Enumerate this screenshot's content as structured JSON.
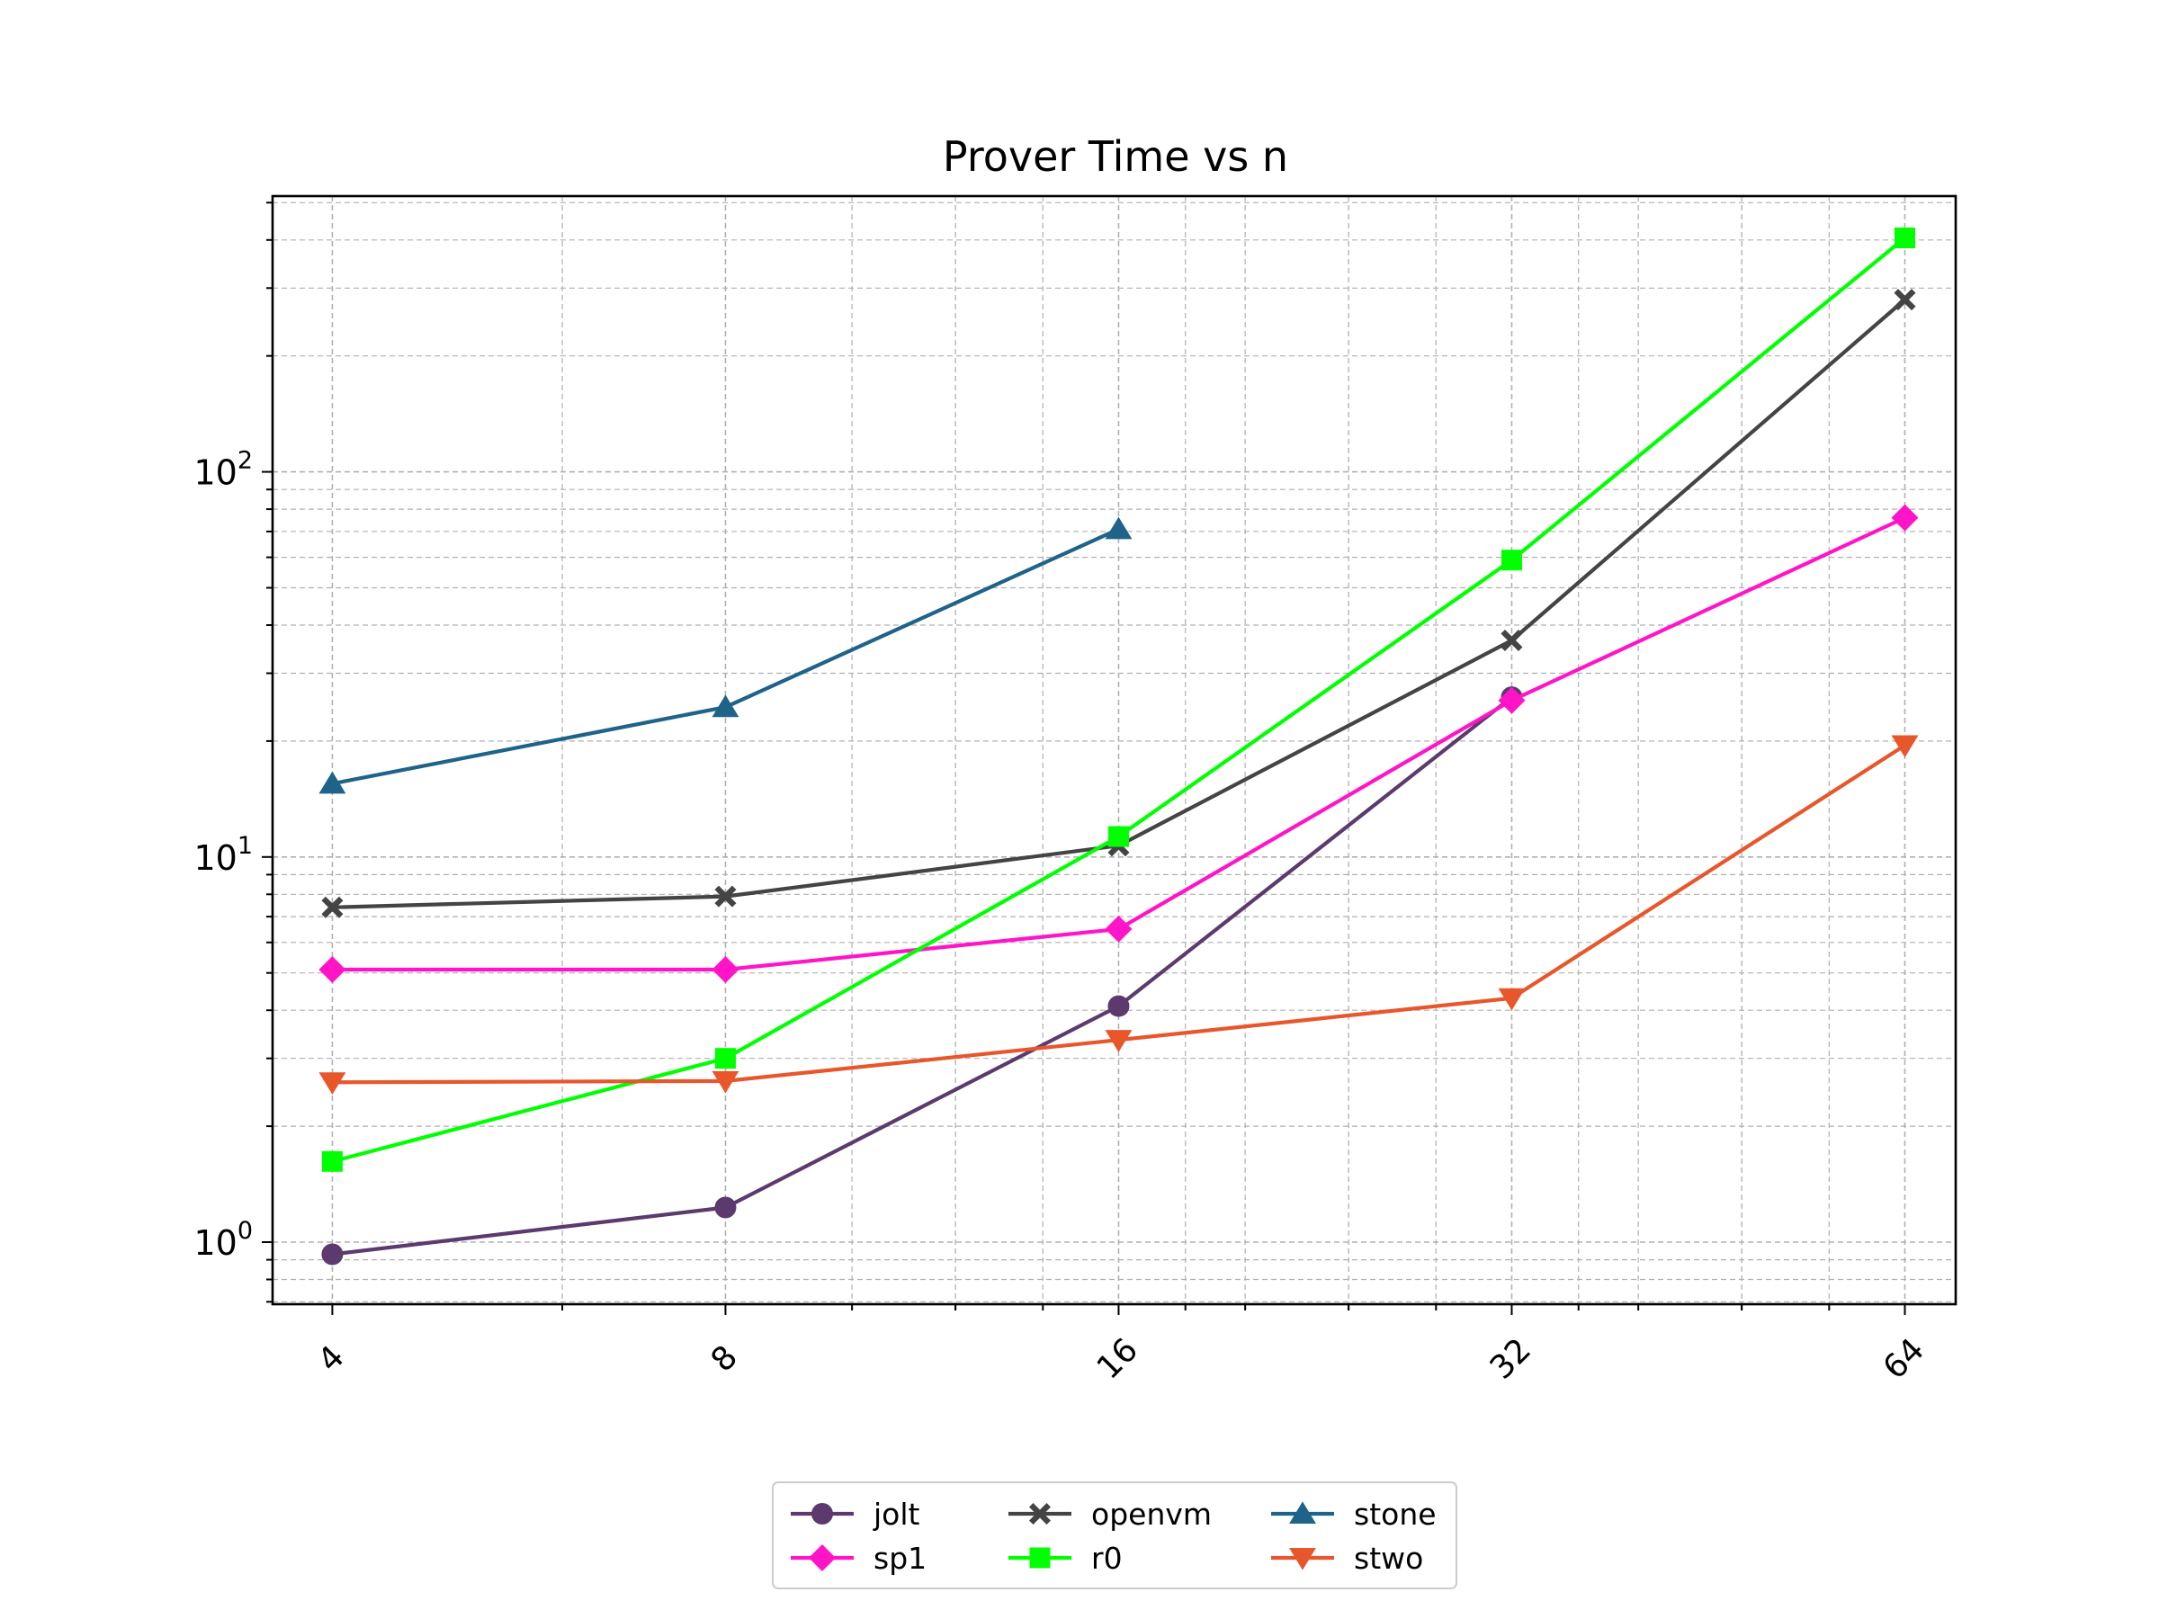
{
  "chart_data": {
    "type": "line",
    "title": "Prover Time vs n",
    "xlabel": "",
    "ylabel": "",
    "x_scale": "log2",
    "y_scale": "log10",
    "x": [
      4,
      8,
      16,
      32,
      64
    ],
    "x_tick_labels": [
      "4",
      "8",
      "16",
      "32",
      "64"
    ],
    "xlim": [
      3.6,
      70
    ],
    "ylim": [
      0.69,
      520
    ],
    "y_ticks": [
      {
        "base": "10",
        "exp": "0",
        "value": 1
      },
      {
        "base": "10",
        "exp": "1",
        "value": 10
      },
      {
        "base": "10",
        "exp": "2",
        "value": 100
      }
    ],
    "grid": true,
    "legend_position": "bottom-center",
    "series": [
      {
        "name": "jolt",
        "color": "#5c3a6e",
        "marker": "circle",
        "values": [
          0.93,
          1.23,
          4.1,
          26,
          null
        ]
      },
      {
        "name": "sp1",
        "color": "#ff14c8",
        "marker": "diamond",
        "values": [
          5.1,
          5.1,
          6.5,
          25.5,
          76
        ]
      },
      {
        "name": "openvm",
        "color": "#444444",
        "marker": "x",
        "values": [
          7.4,
          7.9,
          10.7,
          36.5,
          280
        ]
      },
      {
        "name": "r0",
        "color": "#00ff00",
        "marker": "square",
        "values": [
          1.62,
          3.0,
          11.3,
          59,
          405
        ]
      },
      {
        "name": "stone",
        "color": "#1f6389",
        "marker": "triangle-up",
        "values": [
          15.5,
          24.5,
          71,
          null,
          null
        ]
      },
      {
        "name": "stwo",
        "color": "#e8562c",
        "marker": "triangle-down",
        "values": [
          2.6,
          2.62,
          3.35,
          4.3,
          19.5
        ]
      }
    ]
  }
}
